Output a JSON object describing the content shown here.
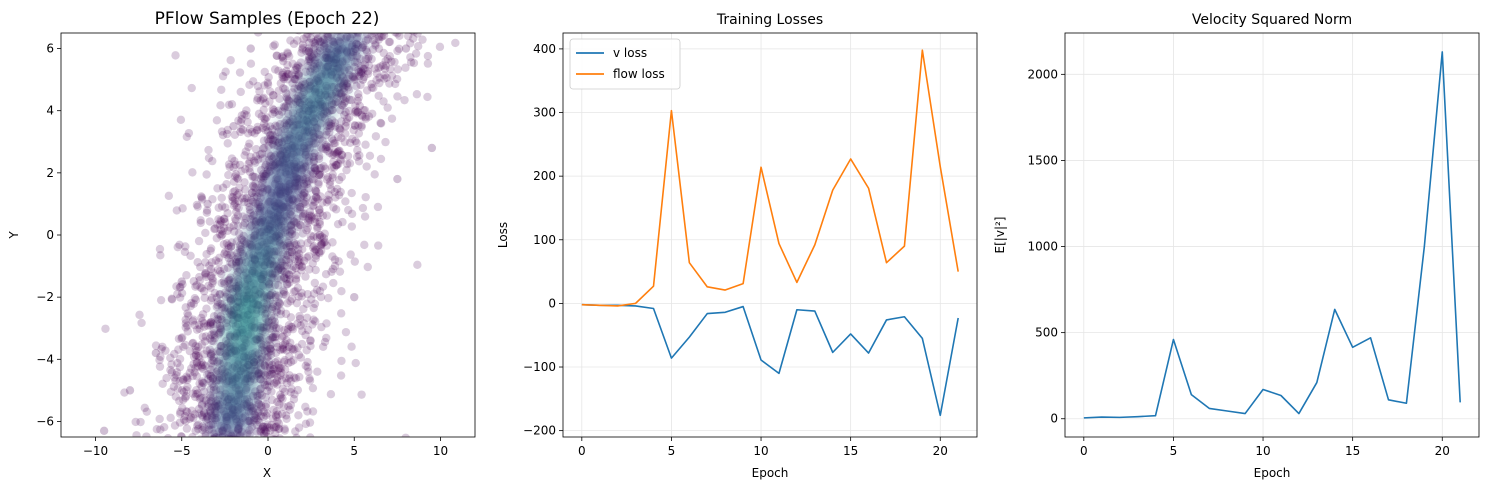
{
  "chart_data": [
    {
      "type": "scatter",
      "title": "PFlow Samples (Epoch 22)",
      "xlabel": "X",
      "ylabel": "Y",
      "xlim": [
        -12,
        12
      ],
      "ylim": [
        -6.5,
        6.5
      ],
      "xticks": [
        -10,
        -5,
        0,
        5,
        10
      ],
      "yticks": [
        -6,
        -4,
        -2,
        0,
        2,
        4,
        6
      ],
      "xtick_labels": [
        "−10",
        "−5",
        "0",
        "5",
        "10"
      ],
      "ytick_labels": [
        "−6",
        "−4",
        "−2",
        "0",
        "2",
        "4",
        "6"
      ],
      "grid": false,
      "point_color": "#440154",
      "density_colors": [
        "#3b528b",
        "#21918c",
        "#2a788e"
      ],
      "description_points": [
        {
          "x": -9.5,
          "y": -6.3
        },
        {
          "x": -8.0,
          "y": -5.0
        },
        {
          "x": -6.5,
          "y": -3.8
        },
        {
          "x": -5.0,
          "y": -1.5
        },
        {
          "x": -3.5,
          "y": 1.0
        },
        {
          "x": -2.0,
          "y": 3.5
        },
        {
          "x": -1.0,
          "y": 6.0
        },
        {
          "x": 1.0,
          "y": -3.5
        },
        {
          "x": 3.0,
          "y": 0.0
        },
        {
          "x": 4.5,
          "y": 3.5
        },
        {
          "x": 5.5,
          "y": 5.0
        },
        {
          "x": 8.0,
          "y": 6.0
        },
        {
          "x": 9.5,
          "y": 2.8
        },
        {
          "x": 7.5,
          "y": 1.8
        },
        {
          "x": 5.0,
          "y": -2.0
        }
      ]
    },
    {
      "type": "line",
      "title": "Training Losses",
      "xlabel": "Epoch",
      "ylabel": "Loss",
      "xlim": [
        -1.05,
        22.05
      ],
      "ylim": [
        -210,
        425
      ],
      "xticks": [
        0,
        5,
        10,
        15,
        20
      ],
      "yticks": [
        -200,
        -100,
        0,
        100,
        200,
        300,
        400
      ],
      "xtick_labels": [
        "0",
        "5",
        "10",
        "15",
        "20"
      ],
      "ytick_labels": [
        "−200",
        "−100",
        "0",
        "100",
        "200",
        "300",
        "400"
      ],
      "grid": true,
      "legend_position": "upper-left",
      "x": [
        0,
        1,
        2,
        3,
        4,
        5,
        6,
        7,
        8,
        9,
        10,
        11,
        12,
        13,
        14,
        15,
        16,
        17,
        18,
        19,
        20,
        21
      ],
      "series": [
        {
          "name": "v loss",
          "color": "#1f77b4",
          "values": [
            -2,
            -3,
            -3,
            -4,
            -8,
            -86,
            -53,
            -16,
            -14,
            -5,
            -89,
            -110,
            -10,
            -12,
            -77,
            -48,
            -78,
            -26,
            -21,
            -55,
            -176,
            -23
          ]
        },
        {
          "name": "flow loss",
          "color": "#ff7f0e",
          "values": [
            -2,
            -3,
            -4,
            0,
            27,
            303,
            64,
            26,
            21,
            31,
            214,
            94,
            33,
            92,
            178,
            227,
            181,
            64,
            90,
            398,
            215,
            50
          ]
        }
      ]
    },
    {
      "type": "line",
      "title": "Velocity Squared Norm",
      "xlabel": "Epoch",
      "ylabel": "E[|v|²]",
      "xlim": [
        -1.05,
        22.05
      ],
      "ylim": [
        -106,
        2240
      ],
      "xticks": [
        0,
        5,
        10,
        15,
        20
      ],
      "yticks": [
        0,
        500,
        1000,
        1500,
        2000
      ],
      "xtick_labels": [
        "0",
        "5",
        "10",
        "15",
        "20"
      ],
      "ytick_labels": [
        "0",
        "500",
        "1000",
        "1500",
        "2000"
      ],
      "grid": true,
      "x": [
        0,
        1,
        2,
        3,
        4,
        5,
        6,
        7,
        8,
        9,
        10,
        11,
        12,
        13,
        14,
        15,
        16,
        17,
        18,
        19,
        20,
        21
      ],
      "series": [
        {
          "color": "#1f77b4",
          "values": [
            5,
            10,
            8,
            12,
            18,
            460,
            140,
            60,
            45,
            30,
            170,
            135,
            30,
            210,
            635,
            415,
            470,
            110,
            90,
            1000,
            2130,
            95
          ]
        }
      ]
    }
  ]
}
